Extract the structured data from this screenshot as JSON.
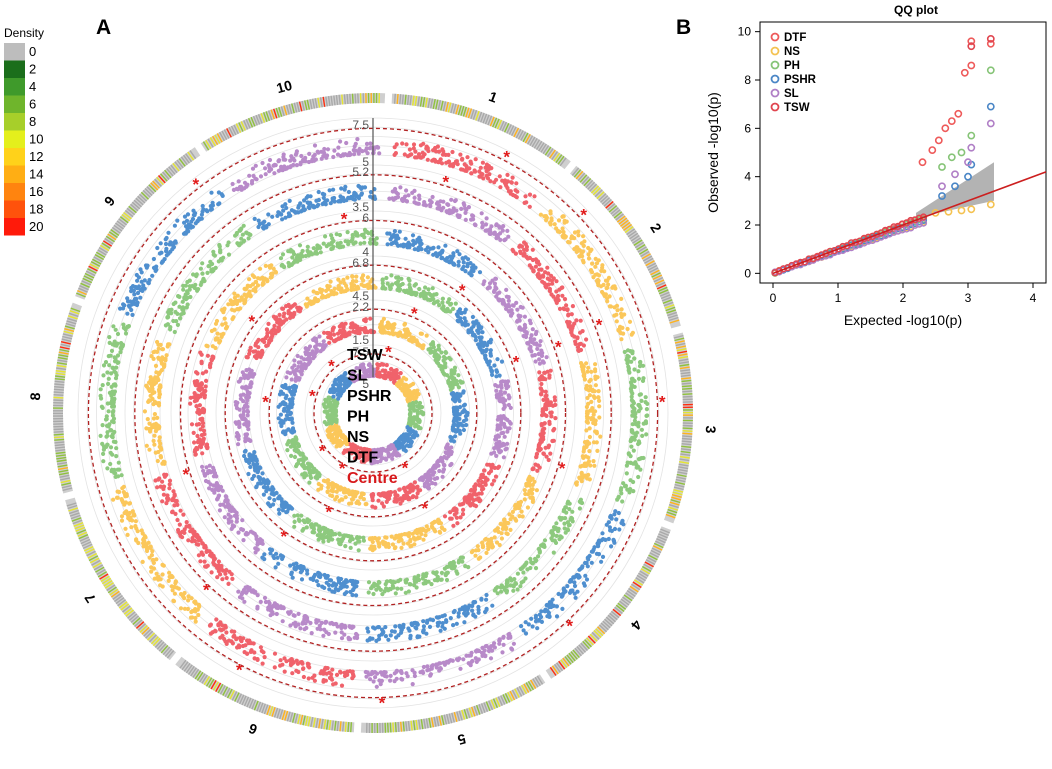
{
  "panel_a": {
    "label": "A",
    "legend": {
      "title": "Density",
      "levels": [
        "0",
        "2",
        "4",
        "6",
        "8",
        "10",
        "12",
        "14",
        "16",
        "18",
        "20"
      ],
      "colors": [
        "#bdbdbd",
        "#1b6e1b",
        "#3f9a2b",
        "#6fb52c",
        "#a7cf2a",
        "#e4ef1c",
        "#ffd21a",
        "#ffae14",
        "#ff840f",
        "#ff520c",
        "#ff1a0a"
      ]
    },
    "chromosomes": [
      "1",
      "2",
      "3",
      "4",
      "5",
      "6",
      "7",
      "8",
      "9",
      "10"
    ],
    "center_labels": [
      "TSW",
      "SL",
      "PSHR",
      "PH",
      "NS",
      "DTF",
      "Centre"
    ],
    "center_highlight_color": "#d7191c",
    "axis_labels": [
      {
        "top": "7.5",
        "bottom": "5"
      },
      {
        "top": "2.2",
        "bottom": "1.5"
      },
      {
        "top": "6.8",
        "bottom": "4.5"
      },
      {
        "top": "6",
        "bottom": "4"
      },
      {
        "top": "5.2",
        "bottom": "3.5"
      },
      {
        "top": "7.5",
        "bottom": "5"
      }
    ],
    "trait_colors": [
      "#f0626b",
      "#fbc75a",
      "#8dc97e",
      "#4f8fcf",
      "#b88ac9"
    ],
    "threshold_color": "#b22222"
  },
  "panel_b": {
    "label": "B",
    "chart_data": {
      "type": "scatter",
      "title": "QQ plot",
      "xlabel": "Expected  -log10(p)",
      "ylabel": "Observed  -log10(p)",
      "xlim": [
        -0.2,
        4.2
      ],
      "ylim": [
        -0.4,
        10.4
      ],
      "xticks": [
        "0",
        "1",
        "2",
        "3",
        "4"
      ],
      "yticks": [
        "0",
        "2",
        "4",
        "6",
        "8",
        "10"
      ],
      "reference_line": {
        "x": [
          0,
          4.2
        ],
        "y": [
          0,
          4.2
        ],
        "color": "#cc1f1f"
      },
      "confidence_band": {
        "x": [
          2.2,
          3.4
        ],
        "lower": [
          2.3,
          3.0
        ],
        "upper": [
          2.5,
          4.6
        ],
        "color": "#b3b3b3"
      },
      "series": [
        {
          "name": "DTF",
          "color": "#ee5a5a",
          "tail": [
            [
              2.3,
              4.6
            ],
            [
              2.45,
              5.1
            ],
            [
              2.55,
              5.5
            ],
            [
              2.65,
              6.0
            ],
            [
              2.75,
              6.3
            ],
            [
              2.85,
              6.6
            ],
            [
              3.05,
              8.6
            ],
            [
              3.05,
              9.6
            ],
            [
              2.95,
              8.3
            ],
            [
              3.35,
              9.5
            ]
          ]
        },
        {
          "name": "NS",
          "color": "#f4c251",
          "tail": [
            [
              2.5,
              2.5
            ],
            [
              2.7,
              2.55
            ],
            [
              2.9,
              2.6
            ],
            [
              3.05,
              2.65
            ],
            [
              3.35,
              2.85
            ]
          ]
        },
        {
          "name": "PH",
          "color": "#86c477",
          "tail": [
            [
              2.6,
              4.4
            ],
            [
              2.75,
              4.8
            ],
            [
              2.9,
              5.0
            ],
            [
              3.05,
              5.7
            ],
            [
              3.35,
              8.4
            ]
          ]
        },
        {
          "name": "PSHR",
          "color": "#4a86c6",
          "tail": [
            [
              2.6,
              3.2
            ],
            [
              2.8,
              3.6
            ],
            [
              3.0,
              4.0
            ],
            [
              3.05,
              4.5
            ],
            [
              3.35,
              6.9
            ]
          ]
        },
        {
          "name": "SL",
          "color": "#b07fc6",
          "tail": [
            [
              2.6,
              3.6
            ],
            [
              2.8,
              4.1
            ],
            [
              3.0,
              4.6
            ],
            [
              3.05,
              5.2
            ],
            [
              3.35,
              6.2
            ]
          ]
        },
        {
          "name": "TSW",
          "color": "#e0454f",
          "tail": [
            [
              3.05,
              9.4
            ],
            [
              3.35,
              9.7
            ]
          ]
        }
      ]
    }
  }
}
